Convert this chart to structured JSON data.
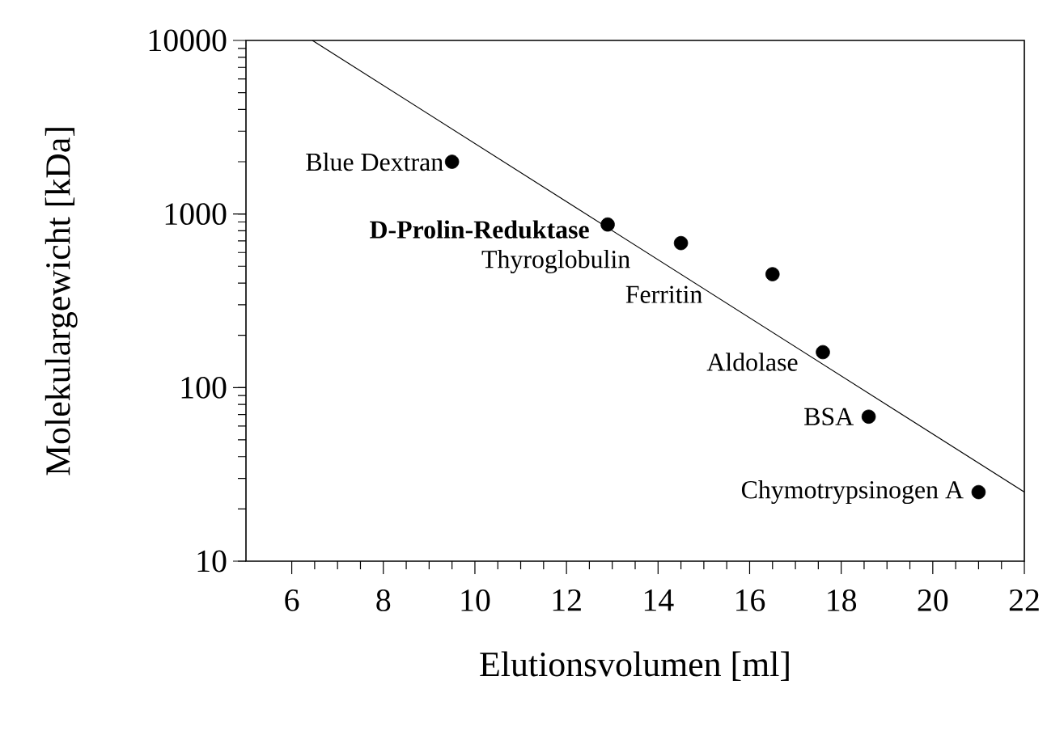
{
  "chart_data": {
    "type": "scatter",
    "xlabel": "Elutionsvolumen [ml]",
    "ylabel": "Molekulargewicht [kDa]",
    "xlim": [
      5,
      22
    ],
    "xticks": [
      6,
      8,
      10,
      12,
      14,
      16,
      18,
      20,
      22
    ],
    "ylim": [
      10,
      10000
    ],
    "yticks": [
      10,
      100,
      1000,
      10000
    ],
    "log": "y",
    "series": [
      {
        "color": "#000000",
        "marker": "circle",
        "x": [
          9.5,
          12.9,
          14.5,
          16.5,
          17.6,
          18.6,
          21.0
        ],
        "values": [
          2000,
          870,
          680,
          450,
          160,
          68,
          25
        ]
      },
      {
        "type": "line",
        "color": "#000000",
        "marker": "none",
        "x": [
          6.45,
          22
        ],
        "values": [
          10000,
          25
        ]
      }
    ],
    "annotations": [
      {
        "text": "Blue Dextran",
        "x": 9.5,
        "y": 2000
      },
      {
        "text": "**D-Prolin-Reduktase**",
        "x": 12.9,
        "y": 870
      },
      {
        "text": "Thyroglobulin",
        "x": 14.5,
        "y": 680
      },
      {
        "text": "Ferritin",
        "x": 16.5,
        "y": 450
      },
      {
        "text": "Aldolase",
        "x": 17.6,
        "y": 160
      },
      {
        "text": "BSA",
        "x": 18.6,
        "y": 68
      },
      {
        "text": "Chymotrypsinogen A",
        "x": 21.0,
        "y": 25
      }
    ]
  }
}
